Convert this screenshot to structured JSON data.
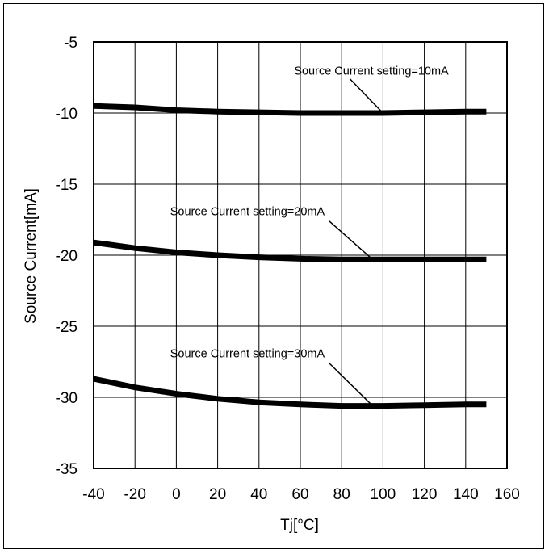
{
  "chart_data": {
    "type": "line",
    "title": "",
    "xlabel": "Tj[°C]",
    "ylabel": "Source Current[mA]",
    "xlim": [
      -40,
      160
    ],
    "ylim": [
      -35,
      -5
    ],
    "x_ticks": [
      -40,
      -20,
      0,
      20,
      40,
      60,
      80,
      100,
      120,
      140,
      160
    ],
    "y_ticks": [
      -5,
      -10,
      -15,
      -20,
      -25,
      -30,
      -35
    ],
    "x_tick_labels": [
      "-40",
      "-20",
      "0",
      "20",
      "40",
      "60",
      "80",
      "100",
      "120",
      "140",
      "160"
    ],
    "y_tick_labels": [
      "-5",
      "-10",
      "-15",
      "-20",
      "-25",
      "-30",
      "-35"
    ],
    "grid": true,
    "legend": "none",
    "series_color": "#000000",
    "series": [
      {
        "x": [
          -40,
          -20,
          0,
          20,
          40,
          60,
          80,
          100,
          120,
          140,
          150
        ],
        "y": [
          -9.5,
          -9.6,
          -9.8,
          -9.9,
          -9.95,
          -10.0,
          -10.0,
          -10.0,
          -9.95,
          -9.9,
          -9.9
        ]
      },
      {
        "x": [
          -40,
          -20,
          0,
          20,
          40,
          60,
          80,
          100,
          120,
          140,
          150
        ],
        "y": [
          -19.1,
          -19.5,
          -19.8,
          -20.0,
          -20.15,
          -20.25,
          -20.3,
          -20.3,
          -20.3,
          -20.3,
          -20.3
        ]
      },
      {
        "x": [
          -40,
          -20,
          0,
          20,
          40,
          60,
          80,
          100,
          120,
          140,
          150
        ],
        "y": [
          -28.7,
          -29.3,
          -29.75,
          -30.1,
          -30.35,
          -30.5,
          -30.6,
          -30.6,
          -30.55,
          -30.5,
          -30.5
        ]
      }
    ],
    "annotations": [
      {
        "text": "Source Current setting=10mA",
        "text_at": [
          57,
          -7.3
        ],
        "arrow_from": [
          84,
          -7.6
        ],
        "arrow_to": [
          100,
          -10.0
        ]
      },
      {
        "text": "Source Current setting=20mA",
        "text_at": [
          -3,
          -17.2
        ],
        "arrow_from": [
          74,
          -17.6
        ],
        "arrow_to": [
          95,
          -20.3
        ]
      },
      {
        "text": "Source Current setting=30mA",
        "text_at": [
          -3,
          -27.2
        ],
        "arrow_from": [
          74,
          -27.6
        ],
        "arrow_to": [
          95,
          -30.6
        ]
      }
    ]
  }
}
